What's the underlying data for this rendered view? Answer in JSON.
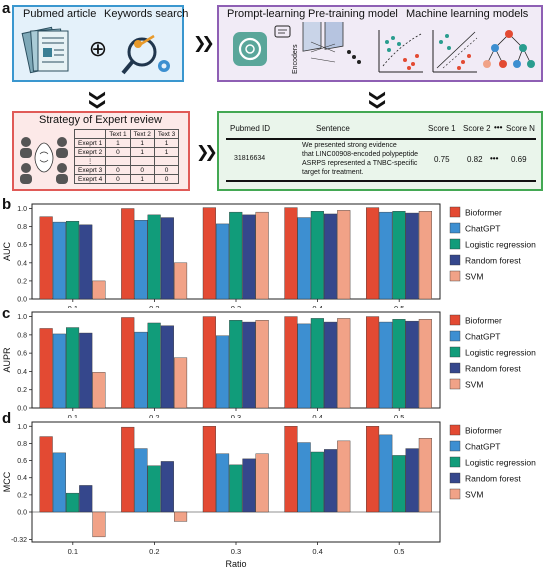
{
  "panel_labels": {
    "a": "a",
    "b": "b",
    "c": "c",
    "d": "d"
  },
  "workflow": {
    "box1": {
      "title_left": "Pubmed article",
      "title_right": "Keywords search",
      "color": "#3a97cf",
      "bg": "#e4f1fa"
    },
    "box2": {
      "title_left": "Prompt-learning",
      "title_mid": "Pre-training model",
      "title_right": "Machine learning models",
      "encoders": "Encoders",
      "color": "#8e5fb4",
      "bg": "#f1ebf6"
    },
    "box3": {
      "title": "Strategy of Expert review",
      "color": "#e05a57",
      "bg": "#fce9e8",
      "header": [
        "",
        "Text 1",
        "Text 2",
        "Text 3"
      ],
      "rows": [
        [
          "Exeprt 1",
          "1",
          "1",
          "1"
        ],
        [
          "Exeprt 2",
          "0",
          "1",
          "1"
        ],
        [
          "⋮",
          "",
          "",
          ""
        ],
        [
          "Exeprt 3",
          "0",
          "0",
          "0"
        ],
        [
          "Exeprt 4",
          "0",
          "1",
          "0"
        ]
      ]
    },
    "box4": {
      "color": "#43a853",
      "bg": "#eaf5eb",
      "headers": [
        "Pubmed ID",
        "Sentence",
        "Score 1",
        "Score 2",
        "•••",
        "Score N"
      ],
      "row": {
        "id": "31816634",
        "sentence": [
          "We presented strong evidence",
          "that LINC00908-encoded polypeptide",
          "ASRPS represented a TNBC-specific",
          "target for treatment."
        ],
        "score1": "0.75",
        "score2": "0.82",
        "dots": "•••",
        "scoreN": "0.69"
      }
    },
    "plus": "⊕"
  },
  "chart_data": [
    {
      "type": "bar",
      "panel": "b",
      "ylabel": "AUC",
      "xlabel": "",
      "categories": [
        "0.1",
        "0.2",
        "0.3",
        "0.4",
        "0.5"
      ],
      "ylim": [
        0,
        1.05
      ],
      "yticks": [
        "0.0",
        "0.2",
        "0.4",
        "0.6",
        "0.8",
        "1.0"
      ],
      "ytick_values": [
        0,
        0.2,
        0.4,
        0.6,
        0.8,
        1.0
      ],
      "series": [
        {
          "name": "Bioformer",
          "color": "#e34a33",
          "values": [
            0.91,
            1.0,
            1.01,
            1.01,
            1.01
          ]
        },
        {
          "name": "ChatGPT",
          "color": "#3d8fd1",
          "values": [
            0.85,
            0.87,
            0.83,
            0.9,
            0.96
          ]
        },
        {
          "name": "Logistic regression",
          "color": "#119c7a",
          "values": [
            0.86,
            0.93,
            0.96,
            0.97,
            0.97
          ]
        },
        {
          "name": "Random forest",
          "color": "#35478c",
          "values": [
            0.82,
            0.9,
            0.93,
            0.94,
            0.95
          ]
        },
        {
          "name": "SVM",
          "color": "#f1a287",
          "values": [
            0.2,
            0.4,
            0.96,
            0.98,
            0.97
          ]
        }
      ]
    },
    {
      "type": "bar",
      "panel": "c",
      "ylabel": "AUPR",
      "xlabel": "",
      "categories": [
        "0.1",
        "0.2",
        "0.3",
        "0.4",
        "0.5"
      ],
      "ylim": [
        0,
        1.05
      ],
      "yticks": [
        "0.0",
        "0.2",
        "0.4",
        "0.6",
        "0.8",
        "1.0"
      ],
      "ytick_values": [
        0,
        0.2,
        0.4,
        0.6,
        0.8,
        1.0
      ],
      "series": [
        {
          "name": "Bioformer",
          "color": "#e34a33",
          "values": [
            0.87,
            0.99,
            1.0,
            1.0,
            1.0
          ]
        },
        {
          "name": "ChatGPT",
          "color": "#3d8fd1",
          "values": [
            0.81,
            0.83,
            0.79,
            0.92,
            0.94
          ]
        },
        {
          "name": "Logistic regression",
          "color": "#119c7a",
          "values": [
            0.88,
            0.93,
            0.96,
            0.98,
            0.97
          ]
        },
        {
          "name": "Random forest",
          "color": "#35478c",
          "values": [
            0.82,
            0.9,
            0.94,
            0.94,
            0.95
          ]
        },
        {
          "name": "SVM",
          "color": "#f1a287",
          "values": [
            0.39,
            0.55,
            0.96,
            0.98,
            0.97
          ]
        }
      ]
    },
    {
      "type": "bar",
      "panel": "d",
      "ylabel": "MCC",
      "xlabel": "Ratio",
      "categories": [
        "0.1",
        "0.2",
        "0.3",
        "0.4",
        "0.5"
      ],
      "ylim": [
        -0.35,
        1.05
      ],
      "yticks": [
        "-0.32",
        "0.0",
        "0.2",
        "0.4",
        "0.6",
        "0.8",
        "1.0"
      ],
      "ytick_values": [
        -0.32,
        0,
        0.2,
        0.4,
        0.6,
        0.8,
        1.0
      ],
      "series": [
        {
          "name": "Bioformer",
          "color": "#e34a33",
          "values": [
            0.88,
            0.99,
            1.0,
            1.0,
            1.0
          ]
        },
        {
          "name": "ChatGPT",
          "color": "#3d8fd1",
          "values": [
            0.69,
            0.74,
            0.68,
            0.81,
            0.9
          ]
        },
        {
          "name": "Logistic regression",
          "color": "#119c7a",
          "values": [
            0.22,
            0.54,
            0.55,
            0.7,
            0.66
          ]
        },
        {
          "name": "Random forest",
          "color": "#35478c",
          "values": [
            0.31,
            0.59,
            0.62,
            0.73,
            0.74
          ]
        },
        {
          "name": "SVM",
          "color": "#f1a287",
          "values": [
            -0.29,
            -0.11,
            0.68,
            0.83,
            0.86
          ]
        }
      ]
    }
  ]
}
